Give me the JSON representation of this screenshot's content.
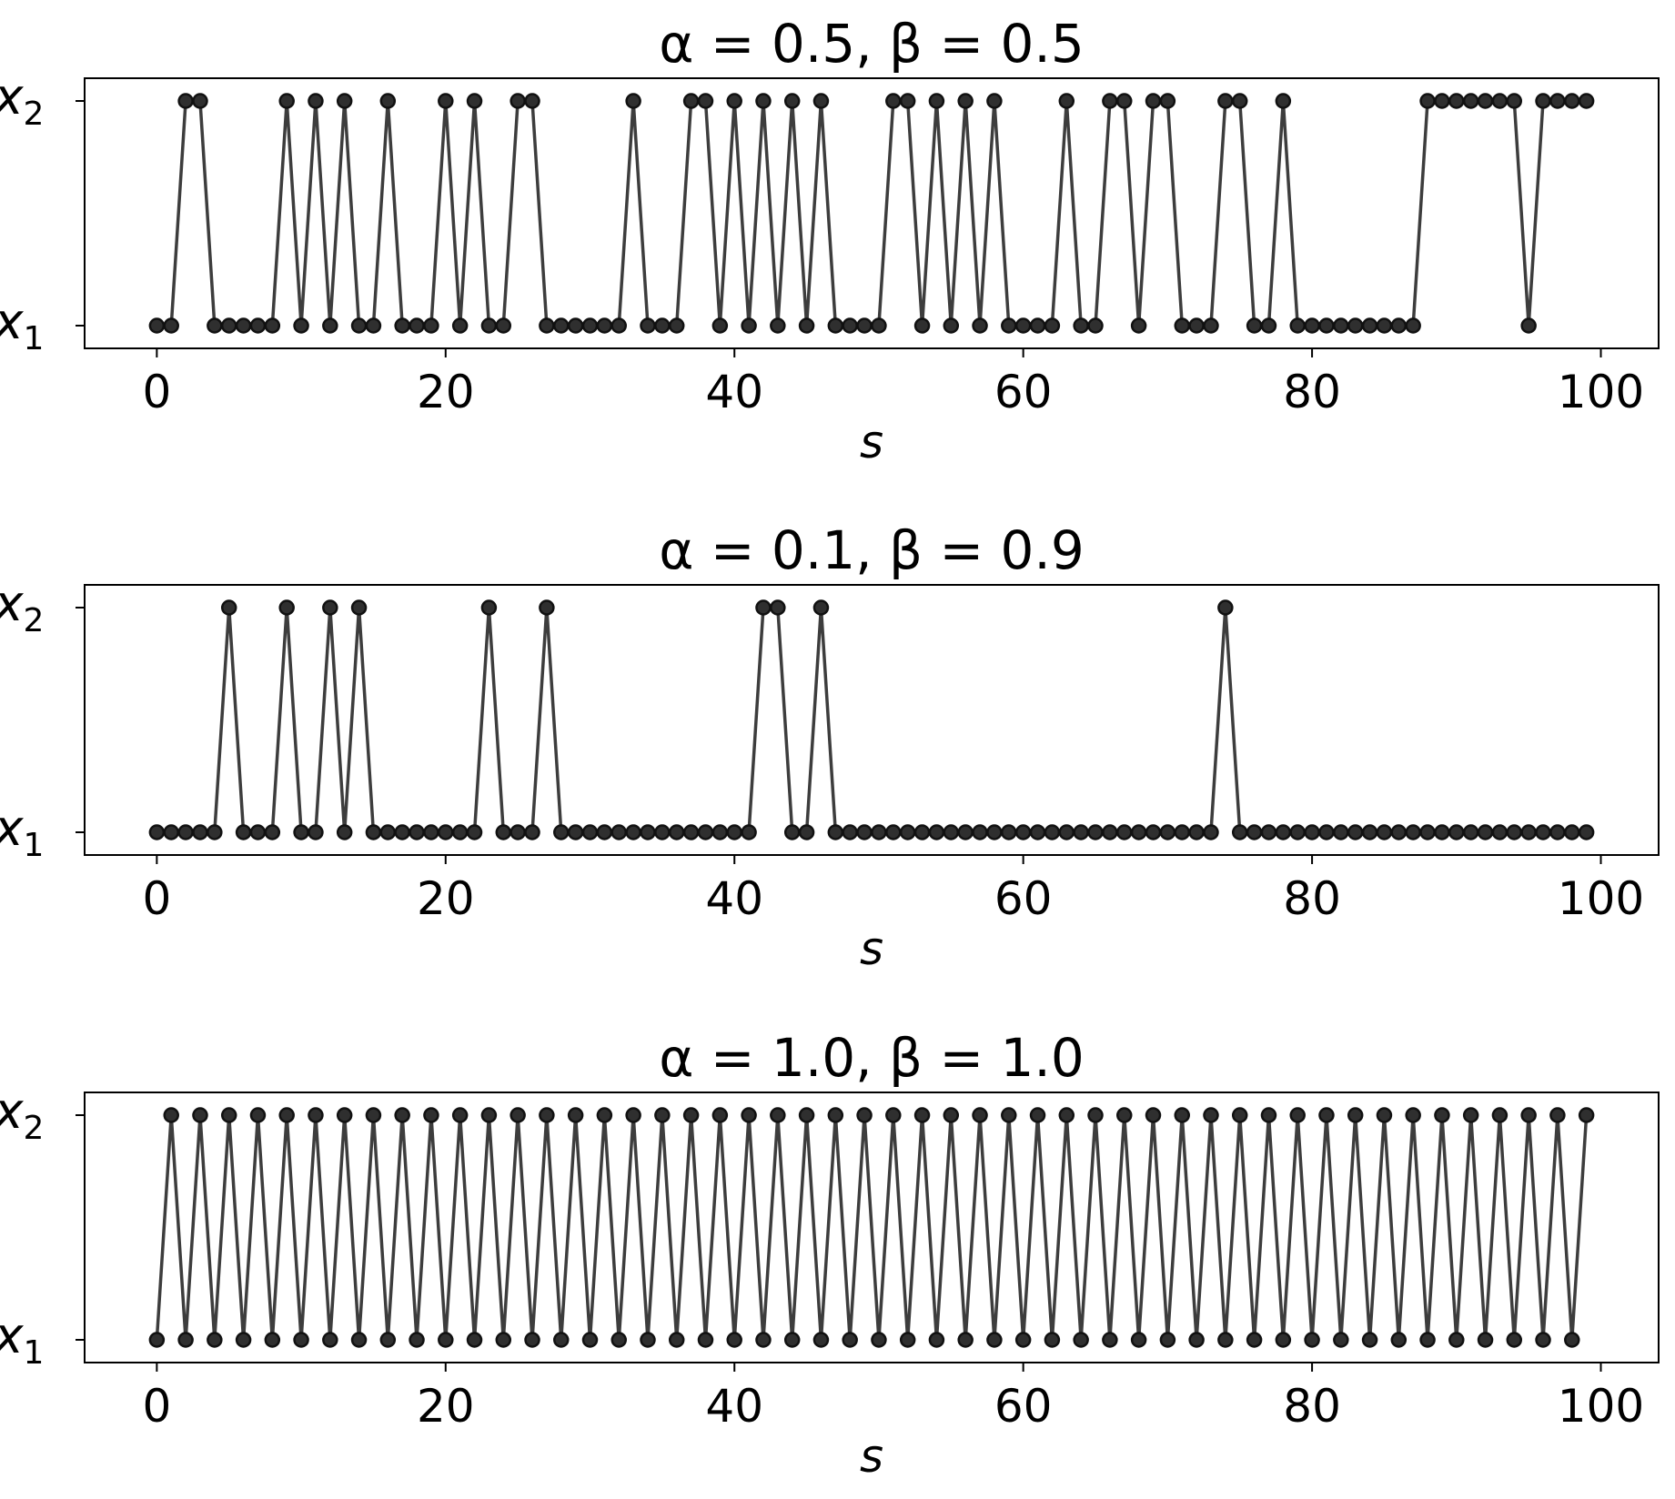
{
  "chart_data": [
    {
      "type": "line",
      "title": "α = 0.5, β = 0.5",
      "xlabel": "s",
      "xlim": [
        -5,
        104
      ],
      "xticks": [
        "0",
        "20",
        "40",
        "60",
        "80",
        "100"
      ],
      "yticks": [
        {
          "base": "x",
          "sub": "1"
        },
        {
          "base": "x",
          "sub": "2"
        }
      ],
      "marker": "circle",
      "color": "#333333",
      "x_start": 0,
      "values": [
        0,
        0,
        1,
        1,
        0,
        0,
        0,
        0,
        0,
        1,
        0,
        1,
        0,
        1,
        0,
        0,
        1,
        0,
        0,
        0,
        1,
        0,
        1,
        0,
        0,
        1,
        1,
        0,
        0,
        0,
        0,
        0,
        0,
        1,
        0,
        0,
        0,
        1,
        1,
        0,
        1,
        0,
        1,
        0,
        1,
        0,
        1,
        0,
        0,
        0,
        0,
        1,
        1,
        0,
        1,
        0,
        1,
        0,
        1,
        0,
        0,
        0,
        0,
        1,
        0,
        0,
        1,
        1,
        0,
        1,
        1,
        0,
        0,
        0,
        1,
        1,
        0,
        0,
        1,
        0,
        0,
        0,
        0,
        0,
        0,
        0,
        0,
        0,
        1,
        1,
        1,
        1,
        1,
        1,
        1,
        0,
        1,
        1,
        1,
        1
      ]
    },
    {
      "type": "line",
      "title": "α = 0.1, β = 0.9",
      "xlabel": "s",
      "xlim": [
        -5,
        104
      ],
      "xticks": [
        "0",
        "20",
        "40",
        "60",
        "80",
        "100"
      ],
      "yticks": [
        {
          "base": "x",
          "sub": "1"
        },
        {
          "base": "x",
          "sub": "2"
        }
      ],
      "marker": "circle",
      "color": "#333333",
      "x_start": 0,
      "values": [
        0,
        0,
        0,
        0,
        0,
        1,
        0,
        0,
        0,
        1,
        0,
        0,
        1,
        0,
        1,
        0,
        0,
        0,
        0,
        0,
        0,
        0,
        0,
        1,
        0,
        0,
        0,
        1,
        0,
        0,
        0,
        0,
        0,
        0,
        0,
        0,
        0,
        0,
        0,
        0,
        0,
        0,
        1,
        1,
        0,
        0,
        1,
        0,
        0,
        0,
        0,
        0,
        0,
        0,
        0,
        0,
        0,
        0,
        0,
        0,
        0,
        0,
        0,
        0,
        0,
        0,
        0,
        0,
        0,
        0,
        0,
        0,
        0,
        0,
        1,
        0,
        0,
        0,
        0,
        0,
        0,
        0,
        0,
        0,
        0,
        0,
        0,
        0,
        0,
        0,
        0,
        0,
        0,
        0,
        0,
        0,
        0,
        0,
        0,
        0
      ]
    },
    {
      "type": "line",
      "title": "α = 1.0, β = 1.0",
      "xlabel": "s",
      "xlim": [
        -5,
        104
      ],
      "xticks": [
        "0",
        "20",
        "40",
        "60",
        "80",
        "100"
      ],
      "yticks": [
        {
          "base": "x",
          "sub": "1"
        },
        {
          "base": "x",
          "sub": "2"
        }
      ],
      "marker": "circle",
      "color": "#333333",
      "x_start": 0,
      "values": [
        0,
        1,
        0,
        1,
        0,
        1,
        0,
        1,
        0,
        1,
        0,
        1,
        0,
        1,
        0,
        1,
        0,
        1,
        0,
        1,
        0,
        1,
        0,
        1,
        0,
        1,
        0,
        1,
        0,
        1,
        0,
        1,
        0,
        1,
        0,
        1,
        0,
        1,
        0,
        1,
        0,
        1,
        0,
        1,
        0,
        1,
        0,
        1,
        0,
        1,
        0,
        1,
        0,
        1,
        0,
        1,
        0,
        1,
        0,
        1,
        0,
        1,
        0,
        1,
        0,
        1,
        0,
        1,
        0,
        1,
        0,
        1,
        0,
        1,
        0,
        1,
        0,
        1,
        0,
        1,
        0,
        1,
        0,
        1,
        0,
        1,
        0,
        1,
        0,
        1,
        0,
        1,
        0,
        1,
        0,
        1,
        0,
        1,
        0,
        1
      ]
    }
  ]
}
